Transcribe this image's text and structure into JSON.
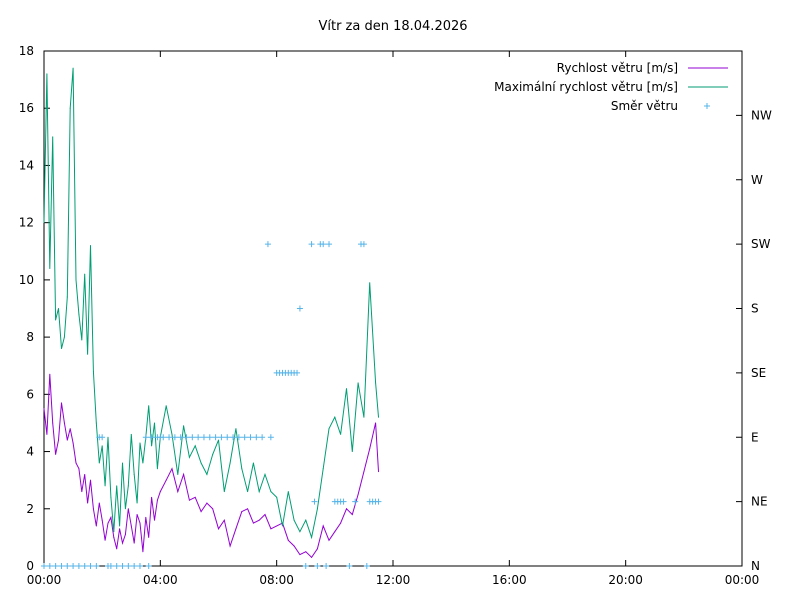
{
  "chart_data": {
    "type": "line",
    "title": "Vítr za den 18.04.2026",
    "x_axis": {
      "ticks": [
        "00:00",
        "04:00",
        "08:00",
        "12:00",
        "16:00",
        "20:00",
        "00:00"
      ],
      "range_hours": [
        0,
        24
      ]
    },
    "y_axis": {
      "ticks": [
        "0",
        "2",
        "4",
        "6",
        "8",
        "10",
        "12",
        "14",
        "16",
        "18"
      ],
      "range": [
        0,
        18
      ]
    },
    "y2_axis": {
      "ticks": [
        "N",
        "NE",
        "E",
        "SE",
        "S",
        "SW",
        "W",
        "NW"
      ],
      "note_scale": "N=0, NE=2.25, E=4.5, SE=6.75, S=9, SW=11.25, W=13.5, NW=15.75 on left axis scale"
    },
    "legend_position": "top-right",
    "grid": false,
    "series": [
      {
        "name": "Rychlost větru [m/s]",
        "color": "#9400d3",
        "style": "line",
        "x_hours": [
          0.0,
          0.1,
          0.2,
          0.3,
          0.4,
          0.5,
          0.6,
          0.7,
          0.8,
          0.9,
          1.0,
          1.1,
          1.2,
          1.3,
          1.4,
          1.5,
          1.6,
          1.7,
          1.8,
          1.9,
          2.0,
          2.1,
          2.2,
          2.3,
          2.4,
          2.5,
          2.6,
          2.7,
          2.8,
          2.9,
          3.0,
          3.1,
          3.2,
          3.3,
          3.4,
          3.5,
          3.6,
          3.7,
          3.8,
          3.9,
          4.0,
          4.2,
          4.4,
          4.6,
          4.8,
          5.0,
          5.2,
          5.4,
          5.6,
          5.8,
          6.0,
          6.2,
          6.4,
          6.6,
          6.8,
          7.0,
          7.2,
          7.4,
          7.6,
          7.8,
          8.0,
          8.2,
          8.4,
          8.6,
          8.8,
          9.0,
          9.2,
          9.4,
          9.6,
          9.8,
          10.0,
          10.2,
          10.4,
          10.6,
          10.8,
          11.0,
          11.2,
          11.4,
          11.5
        ],
        "values": [
          5.5,
          4.6,
          6.7,
          5.0,
          3.9,
          4.4,
          5.7,
          5.0,
          4.4,
          4.8,
          4.3,
          3.6,
          3.4,
          2.6,
          3.2,
          2.2,
          3.0,
          2.0,
          1.4,
          2.2,
          1.6,
          0.9,
          1.5,
          1.7,
          1.0,
          0.6,
          1.3,
          0.8,
          1.1,
          2.0,
          1.4,
          0.8,
          1.8,
          1.5,
          0.5,
          1.7,
          1.0,
          2.4,
          1.6,
          2.3,
          2.6,
          3.0,
          3.4,
          2.6,
          3.2,
          2.3,
          2.4,
          1.9,
          2.2,
          2.0,
          1.3,
          1.6,
          0.7,
          1.3,
          1.9,
          2.0,
          1.5,
          1.6,
          1.8,
          1.3,
          1.4,
          1.5,
          0.9,
          0.7,
          0.4,
          0.5,
          0.3,
          0.6,
          1.4,
          0.9,
          1.2,
          1.5,
          2.0,
          1.8,
          2.5,
          3.3,
          4.1,
          5.0,
          3.3
        ]
      },
      {
        "name": "Maximální rychlost větru [m/s]",
        "color": "#009e73",
        "style": "line",
        "x_hours": [
          0.0,
          0.1,
          0.2,
          0.3,
          0.4,
          0.5,
          0.6,
          0.7,
          0.8,
          0.9,
          1.0,
          1.1,
          1.2,
          1.3,
          1.4,
          1.5,
          1.6,
          1.7,
          1.8,
          1.9,
          2.0,
          2.1,
          2.2,
          2.3,
          2.4,
          2.5,
          2.6,
          2.7,
          2.8,
          2.9,
          3.0,
          3.1,
          3.2,
          3.3,
          3.4,
          3.5,
          3.6,
          3.7,
          3.8,
          3.9,
          4.0,
          4.2,
          4.4,
          4.6,
          4.8,
          5.0,
          5.2,
          5.4,
          5.6,
          5.8,
          6.0,
          6.2,
          6.4,
          6.6,
          6.8,
          7.0,
          7.2,
          7.4,
          7.6,
          7.8,
          8.0,
          8.2,
          8.4,
          8.6,
          8.8,
          9.0,
          9.2,
          9.4,
          9.6,
          9.8,
          10.0,
          10.2,
          10.4,
          10.6,
          10.8,
          11.0,
          11.2,
          11.4,
          11.5
        ],
        "values": [
          12.0,
          17.2,
          10.4,
          15.0,
          8.6,
          9.0,
          7.6,
          8.0,
          9.4,
          16.0,
          17.4,
          10.0,
          8.8,
          7.9,
          10.2,
          7.4,
          11.2,
          6.8,
          5.0,
          3.6,
          4.2,
          2.8,
          4.5,
          2.4,
          1.2,
          2.8,
          1.4,
          3.6,
          2.0,
          2.8,
          4.6,
          3.2,
          2.2,
          4.3,
          3.6,
          4.5,
          5.6,
          4.2,
          5.0,
          3.4,
          4.5,
          5.6,
          4.6,
          3.2,
          4.9,
          3.8,
          4.2,
          3.6,
          3.2,
          3.9,
          4.4,
          2.6,
          3.6,
          4.8,
          3.4,
          2.6,
          3.6,
          2.6,
          3.2,
          2.6,
          2.4,
          1.4,
          2.6,
          1.6,
          1.2,
          1.6,
          1.0,
          2.0,
          3.4,
          4.8,
          5.2,
          4.6,
          6.2,
          4.0,
          6.4,
          5.2,
          9.9,
          6.4,
          5.2
        ]
      },
      {
        "name": "Směr větru",
        "color": "#56b4e9",
        "style": "points",
        "marker": "+",
        "x_hours": [
          0.0,
          0.2,
          0.4,
          0.6,
          0.8,
          1.0,
          1.2,
          1.4,
          1.6,
          1.8,
          1.9,
          2.0,
          2.2,
          2.3,
          2.5,
          2.7,
          2.9,
          3.1,
          3.3,
          3.5,
          3.6,
          3.7,
          3.9,
          4.0,
          4.1,
          4.3,
          4.5,
          4.7,
          4.9,
          5.1,
          5.3,
          5.5,
          5.7,
          5.9,
          6.1,
          6.3,
          6.5,
          6.7,
          6.9,
          7.1,
          7.3,
          7.5,
          7.7,
          7.8,
          8.0,
          8.1,
          8.2,
          8.3,
          8.4,
          8.5,
          8.6,
          8.7,
          8.8,
          9.0,
          9.2,
          9.3,
          9.4,
          9.5,
          9.6,
          9.7,
          9.8,
          10.0,
          10.1,
          10.2,
          10.3,
          10.5,
          10.7,
          10.9,
          11.0,
          11.1,
          11.2,
          11.3,
          11.4,
          11.5
        ],
        "directions": [
          "N",
          "N",
          "N",
          "N",
          "N",
          "N",
          "N",
          "N",
          "N",
          "N",
          "E",
          "E",
          "N",
          "N",
          "N",
          "N",
          "N",
          "N",
          "N",
          "E",
          "N",
          "E",
          "E",
          "E",
          "E",
          "E",
          "E",
          "E",
          "E",
          "E",
          "E",
          "E",
          "E",
          "E",
          "E",
          "E",
          "E",
          "E",
          "E",
          "E",
          "E",
          "E",
          "SW",
          "E",
          "SE",
          "SE",
          "SE",
          "SE",
          "SE",
          "SE",
          "SE",
          "SE",
          "S",
          "N",
          "SW",
          "NE",
          "N",
          "SW",
          "SW",
          "N",
          "SW",
          "NE",
          "NE",
          "NE",
          "NE",
          "N",
          "NE",
          "SW",
          "SW",
          "N",
          "NE",
          "NE",
          "NE",
          "NE"
        ]
      }
    ]
  }
}
